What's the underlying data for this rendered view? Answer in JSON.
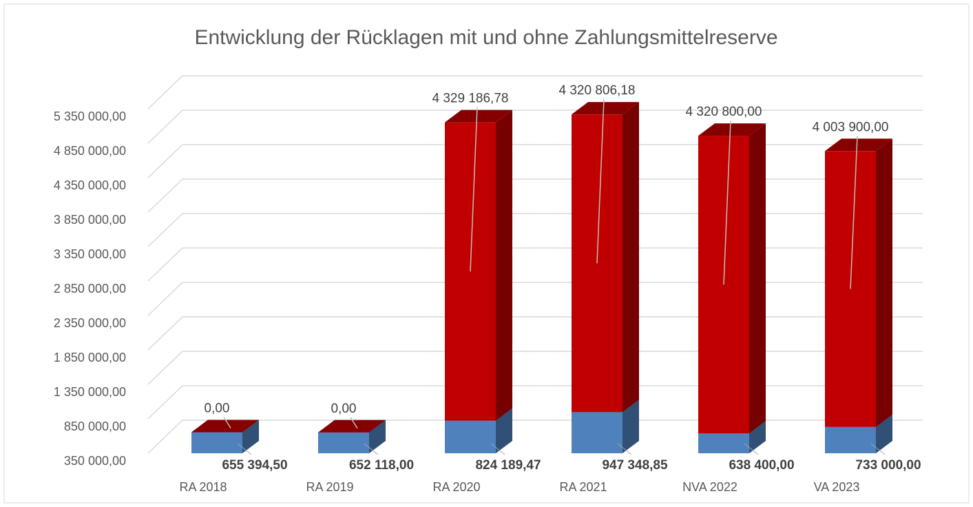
{
  "chart_data": {
    "type": "bar3d_stacked",
    "title": "Entwicklung der Rücklagen mit und ohne Zahlungsmittelreserve",
    "categories": [
      "RA 2018",
      "RA 2019",
      "RA 2020",
      "RA 2021",
      "NVA 2022",
      "VA 2023"
    ],
    "series": [
      {
        "color": "#4f81bd",
        "values": [
          655394.5,
          652118.0,
          824189.47,
          947348.85,
          638400.0,
          733000.0
        ],
        "value_labels": [
          "655 394,50",
          "652 118,00",
          "824 189,47",
          "947 348,85",
          "638 400,00",
          "733 000,00"
        ]
      },
      {
        "color": "#c00000",
        "values": [
          0,
          0,
          4329186.78,
          4320806.18,
          4320800.0,
          4003900.0
        ],
        "value_labels": [
          "0,00",
          "0,00",
          "4 329 186,78",
          "4 320 806,18",
          "4 320 800,00",
          "4 003 900,00"
        ]
      }
    ],
    "ylim": [
      350000,
      5350000
    ],
    "yticks": [
      {
        "value": 350000,
        "label": "350 000,00"
      },
      {
        "value": 850000,
        "label": "850 000,00"
      },
      {
        "value": 1350000,
        "label": "1 350 000,00"
      },
      {
        "value": 1850000,
        "label": "1 850 000,00"
      },
      {
        "value": 2350000,
        "label": "2 350 000,00"
      },
      {
        "value": 2850000,
        "label": "2 850 000,00"
      },
      {
        "value": 3350000,
        "label": "3 350 000,00"
      },
      {
        "value": 3850000,
        "label": "3 850 000,00"
      },
      {
        "value": 4350000,
        "label": "4 350 000,00"
      },
      {
        "value": 4850000,
        "label": "4 850 000,00"
      },
      {
        "value": 5350000,
        "label": "5 350 000,00"
      }
    ],
    "grid": true
  }
}
